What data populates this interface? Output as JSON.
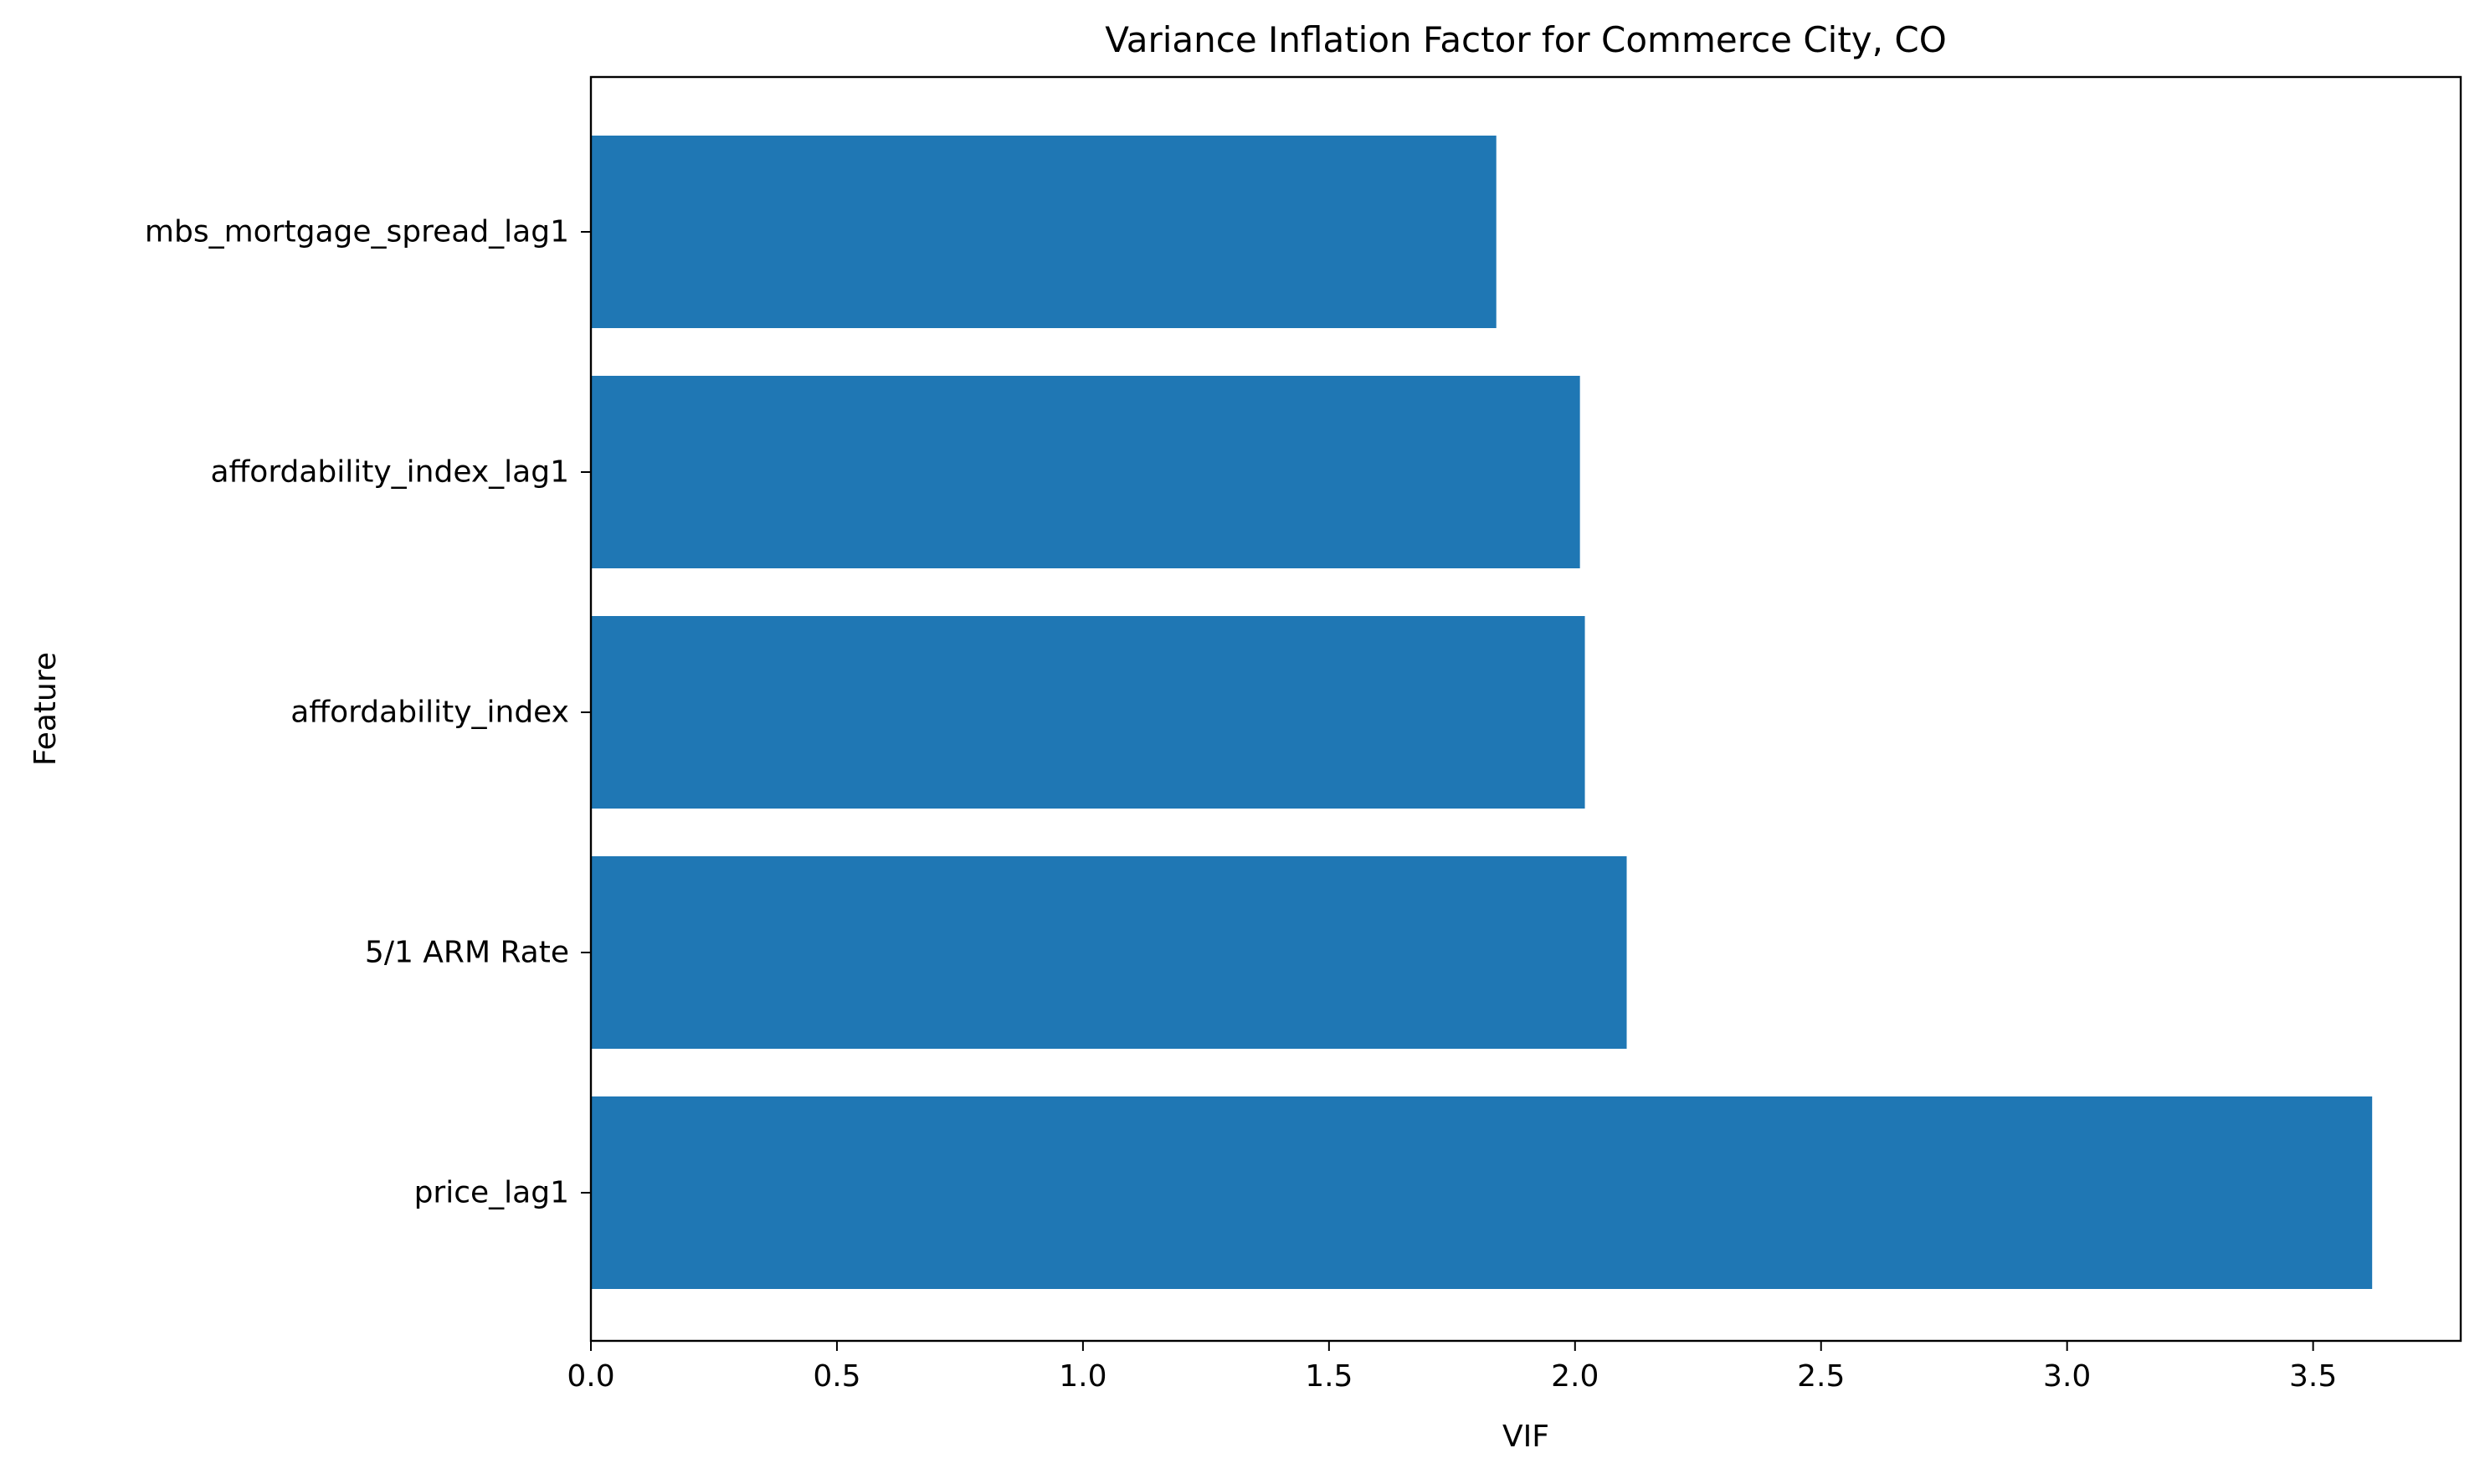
{
  "chart_data": {
    "type": "bar",
    "orientation": "horizontal",
    "title": "Variance Inflation Factor for Commerce City, CO",
    "xlabel": "VIF",
    "ylabel": "Feature",
    "categories": [
      "mbs_mortgage_spread_lag1",
      "affordability_index_lag1",
      "affordability_index",
      "5/1 ARM Rate",
      "price_lag1"
    ],
    "values": [
      1.84,
      2.01,
      2.02,
      2.105,
      3.62
    ],
    "xlim": [
      0,
      3.8
    ],
    "xticks": [
      0.0,
      0.5,
      1.0,
      1.5,
      2.0,
      2.5,
      3.0,
      3.5
    ],
    "xtick_labels": [
      "0.0",
      "0.5",
      "1.0",
      "1.5",
      "2.0",
      "2.5",
      "3.0",
      "3.5"
    ],
    "bar_color": "#1f77b4",
    "grid": false,
    "legend": "none"
  }
}
